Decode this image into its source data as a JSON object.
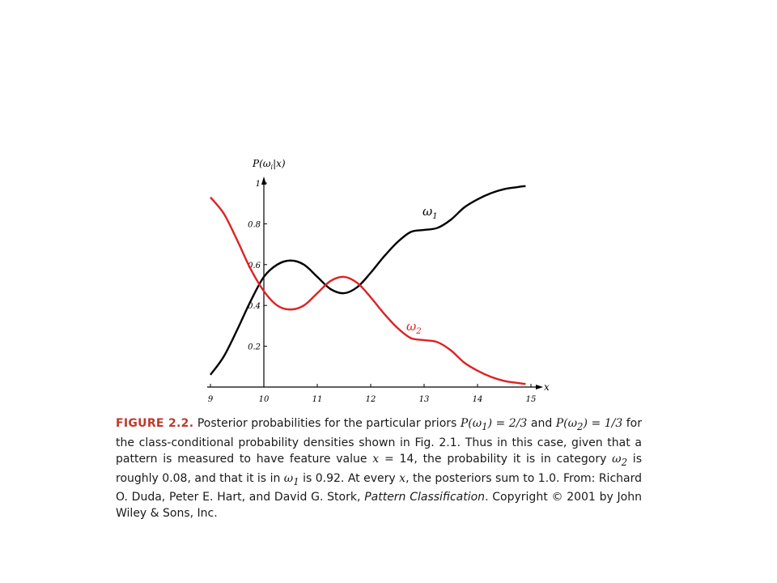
{
  "chart_data": {
    "type": "line",
    "xlabel": "x",
    "ylabel": "P(ω_i|x)",
    "xlim": [
      9,
      15
    ],
    "ylim": [
      0,
      1
    ],
    "x_ticks": [
      "9",
      "10",
      "11",
      "12",
      "13",
      "14",
      "15"
    ],
    "y_ticks": [
      {
        "value": 0.2,
        "label": "0.2"
      },
      {
        "value": 0.4,
        "label": "0.4"
      },
      {
        "value": 0.6,
        "label": "0.6"
      },
      {
        "value": 0.8,
        "label": "0.8"
      },
      {
        "value": 1.0,
        "label": "1"
      }
    ],
    "grid": false,
    "series": [
      {
        "name": "ω1",
        "color": "#000000",
        "x": [
          9.0,
          9.25,
          9.5,
          9.75,
          10.0,
          10.25,
          10.5,
          10.75,
          11.0,
          11.25,
          11.5,
          11.75,
          12.0,
          12.25,
          12.5,
          12.75,
          13.0,
          13.25,
          13.5,
          13.75,
          14.0,
          14.25,
          14.5,
          14.75,
          14.9
        ],
        "y": [
          0.06,
          0.15,
          0.28,
          0.42,
          0.54,
          0.6,
          0.62,
          0.6,
          0.54,
          0.48,
          0.46,
          0.49,
          0.56,
          0.64,
          0.71,
          0.76,
          0.77,
          0.78,
          0.82,
          0.88,
          0.92,
          0.95,
          0.97,
          0.98,
          0.985
        ]
      },
      {
        "name": "ω2",
        "color": "#dd2222",
        "x": [
          9.0,
          9.25,
          9.5,
          9.75,
          10.0,
          10.25,
          10.5,
          10.75,
          11.0,
          11.25,
          11.5,
          11.75,
          12.0,
          12.25,
          12.5,
          12.75,
          13.0,
          13.25,
          13.5,
          13.75,
          14.0,
          14.25,
          14.5,
          14.75,
          14.9
        ],
        "y": [
          0.93,
          0.85,
          0.72,
          0.58,
          0.47,
          0.4,
          0.38,
          0.4,
          0.46,
          0.52,
          0.54,
          0.51,
          0.44,
          0.36,
          0.29,
          0.24,
          0.23,
          0.22,
          0.18,
          0.12,
          0.08,
          0.05,
          0.03,
          0.02,
          0.015
        ]
      }
    ]
  },
  "caption": {
    "label": "FIGURE 2.2.",
    "seg1": " Posterior probabilities for the particular priors ",
    "m1": "P(ω",
    "m1sub": "1",
    "m1end": ") = 2/3",
    "seg2": " and ",
    "m2": "P(ω",
    "m2sub": "2",
    "m2end": ") = 1/3",
    "seg3": " for the class-conditional probability densities shown in Fig. 2.1. Thus in this case, given that a pattern is measured to have feature value ",
    "m3": "x",
    "seg3b": " = 14, the probability it is in category ",
    "m4": "ω",
    "m4sub": "2",
    "seg4": " is roughly 0.08, and that it is in ",
    "m5": "ω",
    "m5sub": "1",
    "seg5": " is 0.92. At every ",
    "m6": "x",
    "seg6": ", the posteriors sum to 1.0. From: Richard O. Duda, Peter E. Hart, and David G. Stork, ",
    "book": "Pattern Classification",
    "seg7": ". Copyright © 2001 by John Wiley & Sons, Inc."
  }
}
